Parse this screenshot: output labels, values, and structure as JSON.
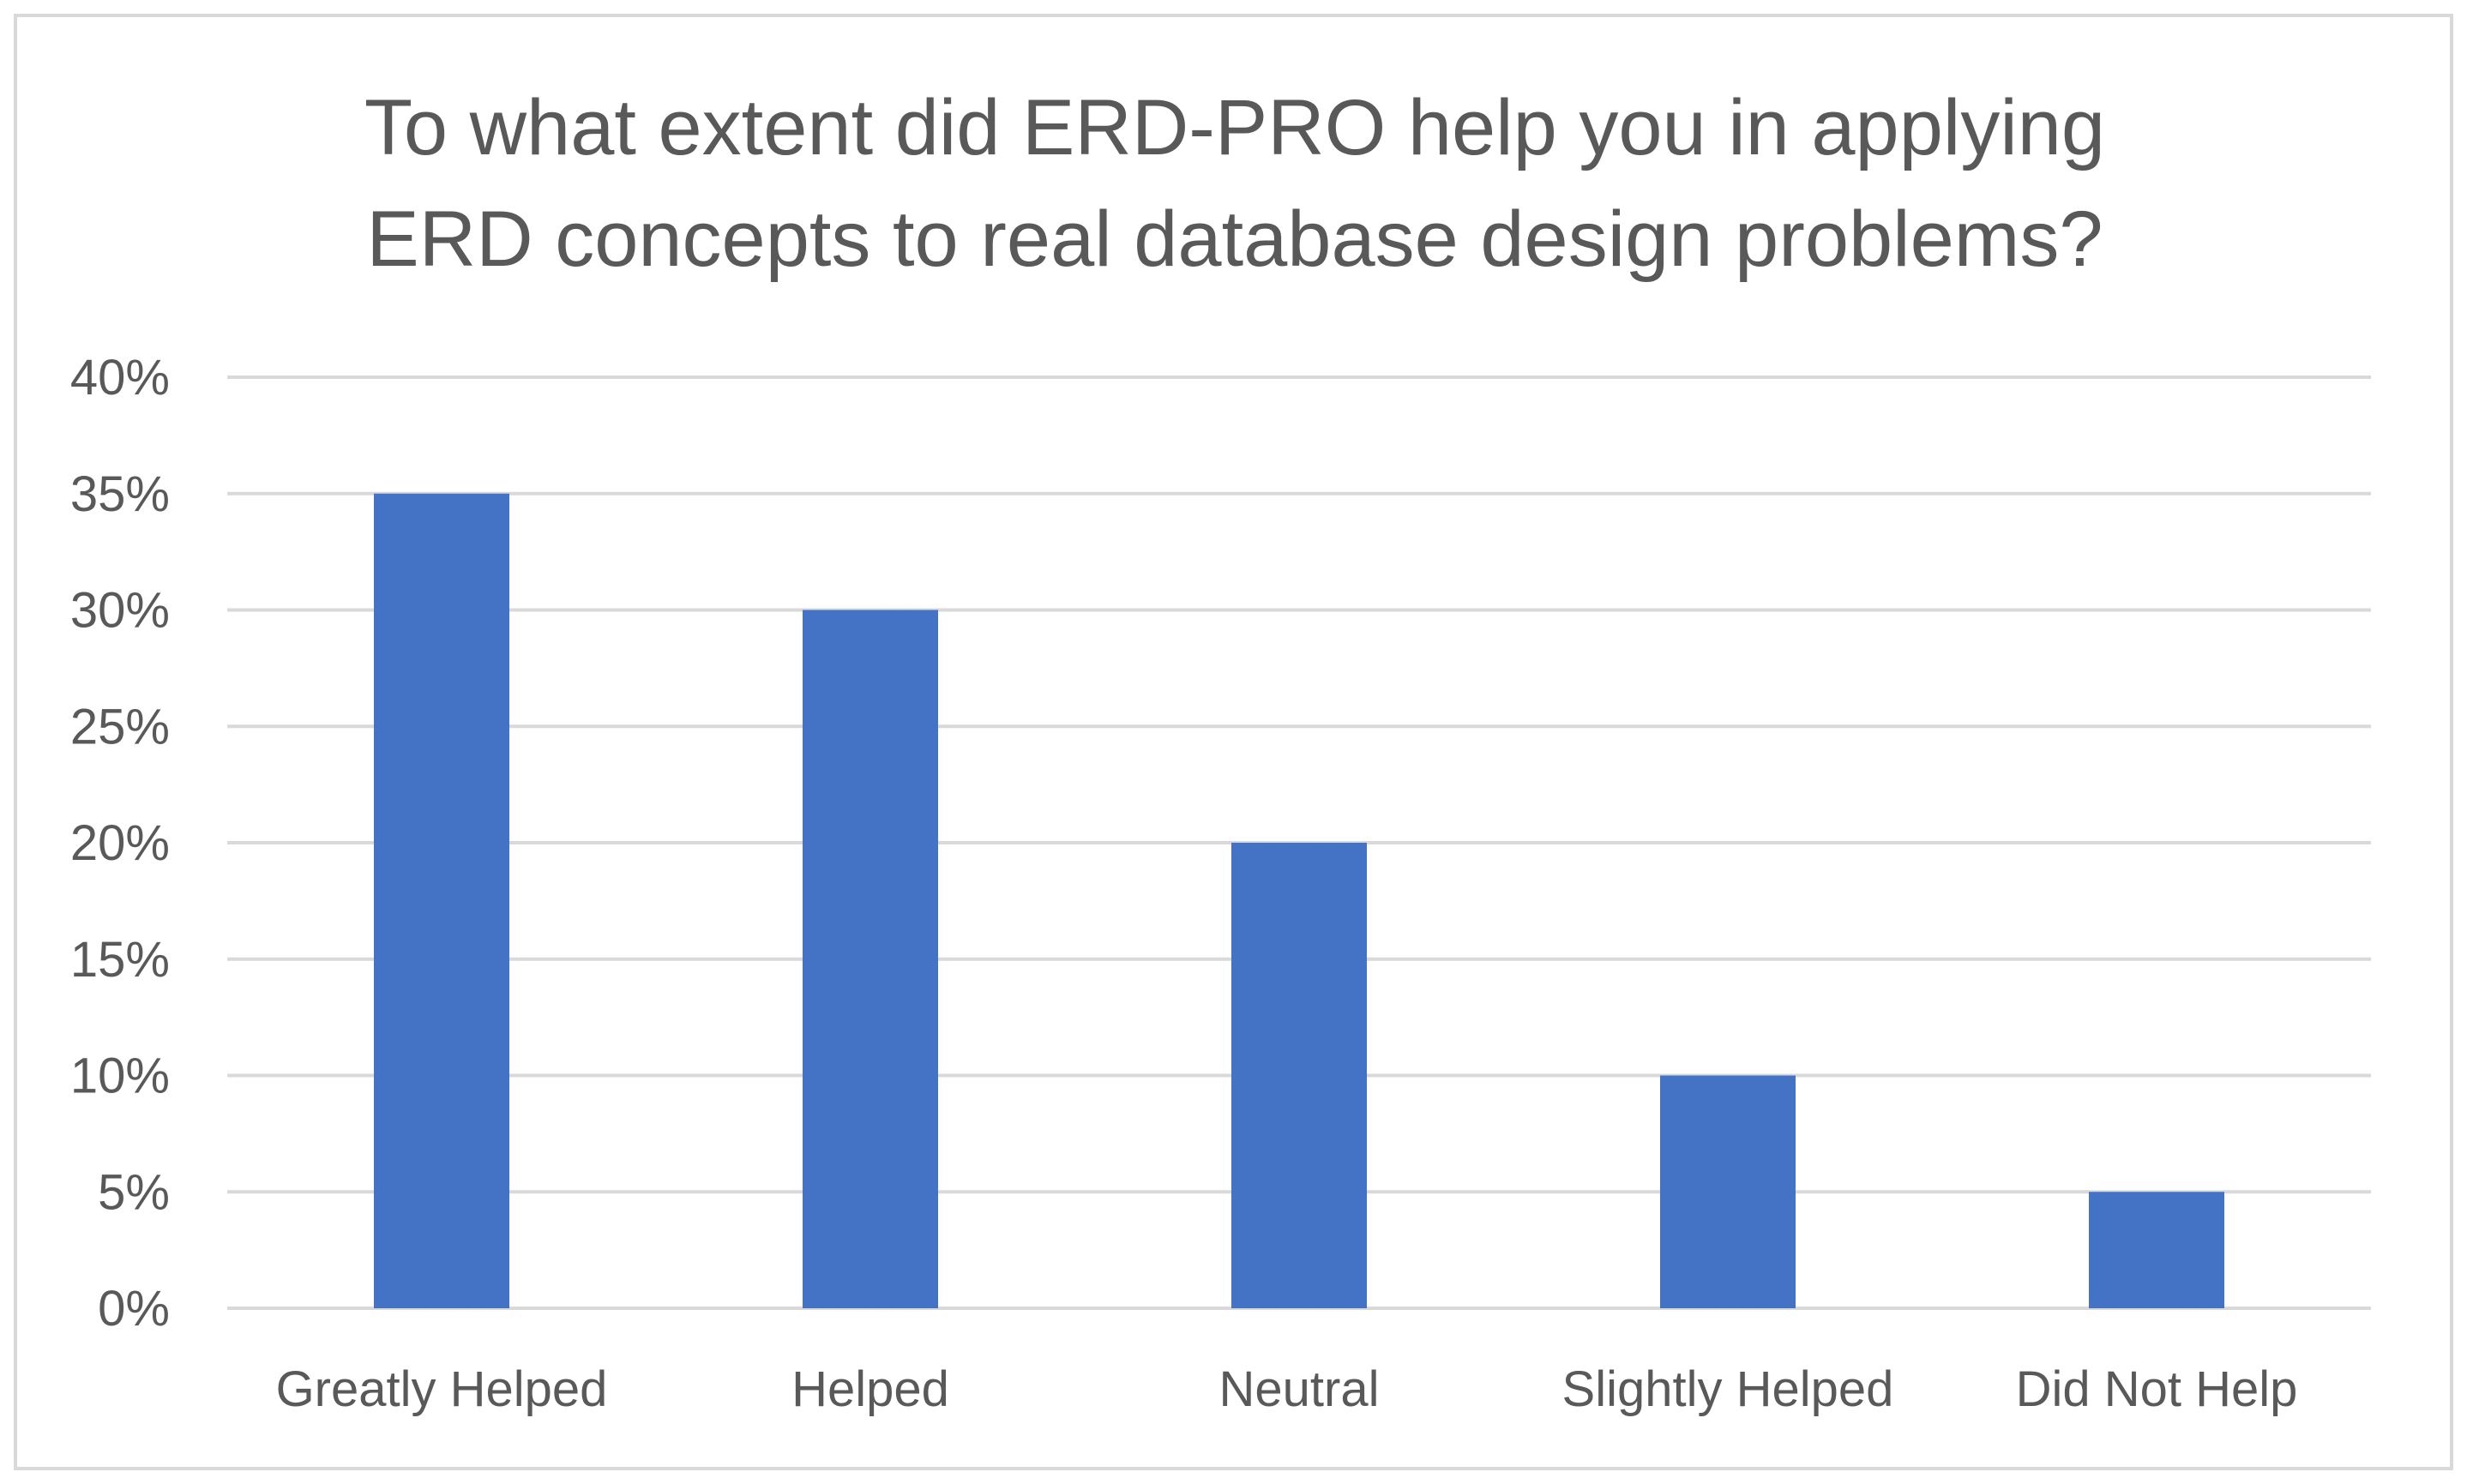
{
  "chart_data": {
    "type": "bar",
    "title_lines": [
      "To what extent did ERD-PRO help you in applying",
      "ERD concepts to real database design problems?"
    ],
    "categories": [
      "Greatly Helped",
      "Helped",
      "Neutral",
      "Slightly Helped",
      "Did Not Help"
    ],
    "values": [
      35,
      30,
      20,
      10,
      5
    ],
    "value_unit": "%",
    "ylim": [
      0,
      40
    ],
    "yticks": [
      0,
      5,
      10,
      15,
      20,
      25,
      30,
      35,
      40
    ],
    "ytick_labels": [
      "0%",
      "5%",
      "10%",
      "15%",
      "20%",
      "25%",
      "30%",
      "35%",
      "40%"
    ],
    "grid": true,
    "legend": "none",
    "colors": {
      "bar": "#4472C4",
      "grid": "#D9D9D9",
      "text": "#595959",
      "frame": "#D9D9D9",
      "background": "#FFFFFF"
    }
  }
}
